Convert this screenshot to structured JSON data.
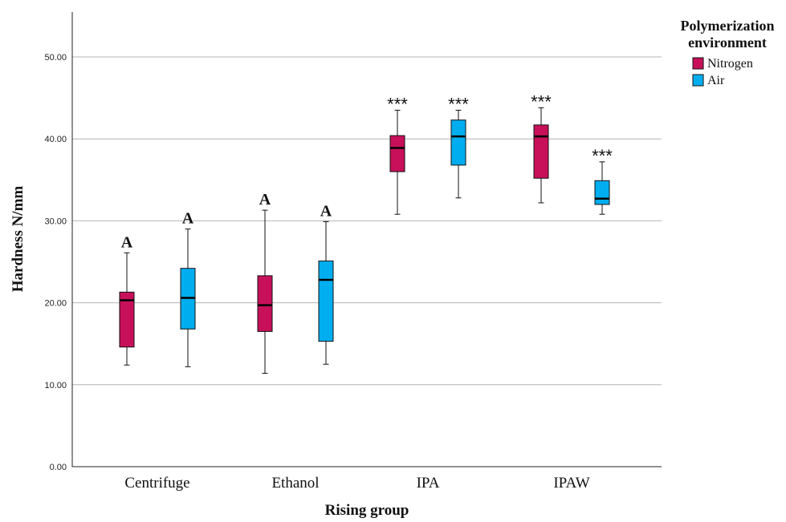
{
  "chart_data": {
    "type": "boxplot",
    "xlabel": "Rising group",
    "ylabel": "Hardness N/mm",
    "ylim": [
      0,
      55
    ],
    "yticks": [
      0,
      10,
      20,
      30,
      40,
      50
    ],
    "ytick_labels": [
      "0.00",
      "10.00",
      "20.00",
      "30.00",
      "40.00",
      "50.00"
    ],
    "grid": "horizontal",
    "categories": [
      "Centrifuge",
      "Ethanol",
      "IPA",
      "IPAW"
    ],
    "legend": {
      "title_lines": [
        "Polymerization",
        "environment"
      ],
      "placement": "top-right"
    },
    "series": [
      {
        "name": "Nitrogen",
        "color": "#c8105a",
        "boxes": [
          {
            "min": 12.4,
            "q1": 14.6,
            "median": 20.3,
            "q3": 21.3,
            "max": 26.1,
            "annotation": "A"
          },
          {
            "min": 11.4,
            "q1": 16.5,
            "median": 19.7,
            "q3": 23.3,
            "max": 31.3,
            "annotation": "A"
          },
          {
            "min": 30.8,
            "q1": 36.0,
            "median": 38.9,
            "q3": 40.4,
            "max": 43.5,
            "annotation": "***"
          },
          {
            "min": 32.2,
            "q1": 35.2,
            "median": 40.3,
            "q3": 41.7,
            "max": 43.8,
            "annotation": "***"
          }
        ]
      },
      {
        "name": "Air",
        "color": "#00aef0",
        "boxes": [
          {
            "min": 12.2,
            "q1": 16.8,
            "median": 20.6,
            "q3": 24.2,
            "max": 29.0,
            "annotation": "A"
          },
          {
            "min": 12.5,
            "q1": 15.3,
            "median": 22.8,
            "q3": 25.1,
            "max": 29.9,
            "annotation": "A"
          },
          {
            "min": 32.8,
            "q1": 36.8,
            "median": 40.3,
            "q3": 42.3,
            "max": 43.5,
            "annotation": "***"
          },
          {
            "min": 30.8,
            "q1": 32.0,
            "median": 32.7,
            "q3": 34.9,
            "max": 37.2,
            "annotation": "***"
          }
        ]
      }
    ]
  }
}
